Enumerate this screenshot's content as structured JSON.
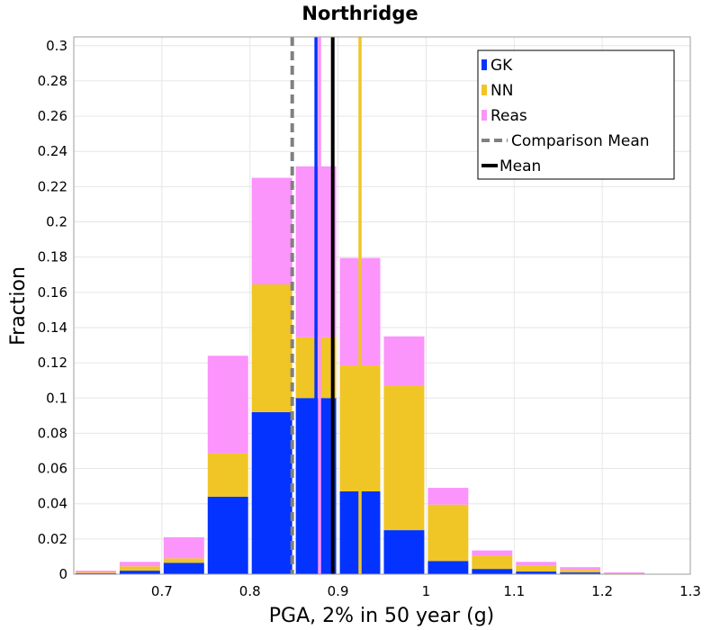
{
  "chart_data": {
    "type": "bar",
    "stacked": true,
    "title": "Northridge",
    "xlabel": "PGA, 2% in 50 year (g)",
    "ylabel": "Fraction",
    "xlim": [
      0.6,
      1.3
    ],
    "ylim": [
      0,
      0.305
    ],
    "xticks": [
      "0.7",
      "0.8",
      "0.9",
      "1",
      "1.1",
      "1.2",
      "1.3"
    ],
    "yticks": [
      "0",
      "0.02",
      "0.04",
      "0.06",
      "0.08",
      "0.1",
      "0.12",
      "0.14",
      "0.16",
      "0.18",
      "0.2",
      "0.22",
      "0.24",
      "0.26",
      "0.28",
      "0.3"
    ],
    "bin_width": 0.05,
    "bin_starts": [
      0.6,
      0.65,
      0.7,
      0.75,
      0.8,
      0.85,
      0.9,
      0.95,
      1.0,
      1.05,
      1.1,
      1.15,
      1.2
    ],
    "series": [
      {
        "name": "GK",
        "color": "#0433ff",
        "values": [
          0.0005,
          0.002,
          0.0065,
          0.044,
          0.092,
          0.1,
          0.047,
          0.025,
          0.0075,
          0.003,
          0.0015,
          0.001,
          0.0002
        ]
      },
      {
        "name": "NN",
        "color": "#f0c526",
        "values": [
          0.0005,
          0.0025,
          0.0025,
          0.0245,
          0.0725,
          0.0345,
          0.0715,
          0.082,
          0.032,
          0.0075,
          0.0035,
          0.0015,
          0.0003
        ]
      },
      {
        "name": "Reas",
        "color": "#fb94fb",
        "values": [
          0.001,
          0.0025,
          0.012,
          0.0555,
          0.0605,
          0.097,
          0.061,
          0.028,
          0.0095,
          0.003,
          0.002,
          0.0015,
          0.0005
        ]
      }
    ],
    "vertical_lines": [
      {
        "name": "GK",
        "x": 0.875,
        "color": "#0433ff",
        "style": "solid"
      },
      {
        "name": "Reas",
        "x": 0.879,
        "color": "#fb94fb",
        "style": "solid"
      },
      {
        "name": "Mean",
        "x": 0.894,
        "color": "#000000",
        "style": "solid"
      },
      {
        "name": "NN",
        "x": 0.925,
        "color": "#f0c526",
        "style": "solid"
      },
      {
        "name": "Comparison Mean",
        "x": 0.848,
        "color": "#808080",
        "style": "dashed"
      }
    ],
    "legend": {
      "position": "top-right",
      "entries": [
        {
          "label": "GK",
          "color": "#0433ff",
          "kind": "patch"
        },
        {
          "label": "NN",
          "color": "#f0c526",
          "kind": "patch"
        },
        {
          "label": "Reas",
          "color": "#fb94fb",
          "kind": "patch"
        },
        {
          "label": "Comparison Mean",
          "color": "#808080",
          "kind": "dashed-line"
        },
        {
          "label": "Mean",
          "color": "#000000",
          "kind": "line"
        }
      ]
    },
    "grid": true
  }
}
